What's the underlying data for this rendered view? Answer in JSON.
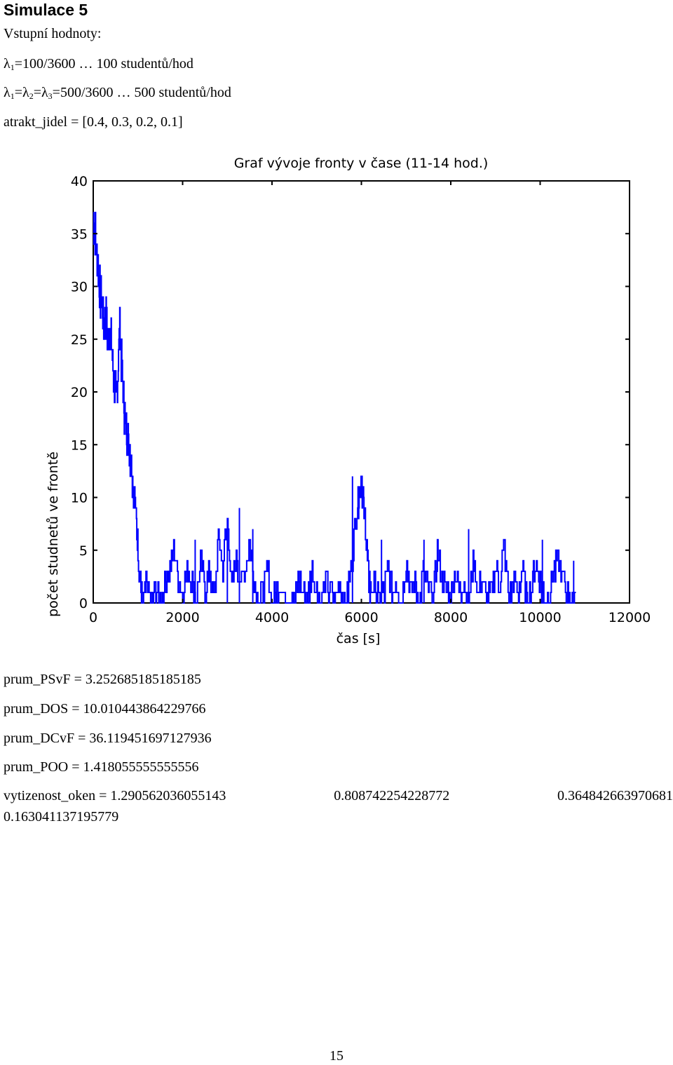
{
  "heading": "Simulace 5",
  "inputs": {
    "title": "Vstupní hodnoty:",
    "lambda1": {
      "symbol": "λ",
      "sub": "1",
      "value": "=100/3600 … 100 studentů/hod"
    },
    "lambda_group": {
      "symbol1": "λ",
      "sub1": "1",
      "eq1": "=",
      "symbol2": "λ",
      "sub2": "2",
      "eq2": "=",
      "symbol3": "λ",
      "sub3": "3",
      "value": "=500/3600 … 500 studentů/hod"
    },
    "atrakt": "atrakt_jidel = [0.4, 0.3, 0.2, 0.1]"
  },
  "chart_data": {
    "type": "line",
    "title": "Graf vývoje fronty v čase (11-14 hod.)",
    "xlabel": "čas [s]",
    "ylabel": "počet studnetů ve frontě",
    "xlim": [
      0,
      12000
    ],
    "ylim": [
      0,
      40
    ],
    "xticks": [
      "0",
      "2000",
      "4000",
      "6000",
      "8000",
      "10000",
      "12000"
    ],
    "yticks": [
      "0",
      "5",
      "10",
      "15",
      "20",
      "25",
      "30",
      "35",
      "40"
    ],
    "grid": false,
    "series": [
      {
        "color": "#0000ff",
        "x": [
          0,
          40,
          80,
          120,
          160,
          200,
          240,
          280,
          320,
          360,
          400,
          440,
          480,
          520,
          560,
          600,
          640,
          680,
          720,
          760,
          800,
          840,
          880,
          920,
          960,
          1000,
          1040,
          1080,
          1120,
          1160,
          1200,
          1300,
          1400,
          1500,
          1600,
          1700,
          1800,
          1900,
          2000,
          2100,
          2200,
          2300,
          2400,
          2500,
          2600,
          2700,
          2800,
          2900,
          3000,
          3100,
          3200,
          3300,
          3400,
          3500,
          3600,
          3700,
          3800,
          3900,
          4000,
          4100,
          4200,
          4300,
          4400,
          4500,
          4600,
          4700,
          4800,
          4900,
          5000,
          5100,
          5200,
          5300,
          5400,
          5500,
          5600,
          5700,
          5800,
          5900,
          5950,
          6000,
          6050,
          6100,
          6150,
          6200,
          6300,
          6400,
          6500,
          6600,
          6700,
          6800,
          6900,
          7000,
          7100,
          7200,
          7300,
          7400,
          7500,
          7600,
          7700,
          7800,
          7900,
          8000,
          8100,
          8200,
          8300,
          8400,
          8500,
          8600,
          8700,
          8800,
          8900,
          9000,
          9100,
          9200,
          9300,
          9400,
          9500,
          9600,
          9700,
          9800,
          9900,
          10000,
          10100,
          10200,
          10300,
          10400,
          10500,
          10600,
          10700,
          10800
        ],
        "y": [
          37,
          35,
          33,
          31,
          29,
          28,
          26,
          27,
          24,
          26,
          25,
          22,
          20,
          19,
          23,
          26,
          22,
          19,
          17,
          16,
          15,
          14,
          12,
          10,
          8,
          5,
          2,
          1,
          0,
          1,
          2,
          0,
          1,
          0,
          2,
          3,
          5,
          2,
          1,
          3,
          2,
          0,
          4,
          1,
          3,
          0,
          6,
          3,
          8,
          1,
          4,
          2,
          3,
          6,
          2,
          0,
          1,
          3,
          0,
          1,
          2,
          0,
          1,
          0,
          2,
          1,
          0,
          3,
          1,
          0,
          2,
          1,
          0,
          2,
          0,
          1,
          4,
          9,
          11,
          12,
          9,
          7,
          3,
          1,
          2,
          0,
          1,
          3,
          1,
          2,
          0,
          4,
          1,
          2,
          0,
          3,
          1,
          0,
          5,
          2,
          1,
          0,
          3,
          1,
          2,
          0,
          4,
          1,
          2,
          0,
          1,
          3,
          2,
          5,
          0,
          2,
          1,
          3,
          0,
          1,
          4,
          2,
          0,
          1,
          3,
          4,
          2,
          1,
          0,
          1
        ],
        "peaks": [
          [
            2280,
            6
          ],
          [
            3000,
            8
          ],
          [
            3270,
            9
          ],
          [
            3570,
            7
          ],
          [
            5800,
            12
          ],
          [
            6450,
            6
          ],
          [
            7400,
            6
          ],
          [
            8400,
            7
          ],
          [
            10050,
            6
          ],
          [
            10750,
            4
          ]
        ]
      }
    ]
  },
  "results": {
    "psvf": "prum_PSvF = 3.252685185185185",
    "dos": "prum_DOS = 10.010443864229766",
    "dcvf": "prum_DCvF = 36.119451697127936",
    "poo": "prum_POO = 1.418055555555556",
    "util_label": "vytizenost_oken  =  1.290562036055143",
    "util_v2": "0.808742254228772",
    "util_v3": "0.364842663970681",
    "util_v4": "0.163041137195779"
  },
  "page_number": "15"
}
